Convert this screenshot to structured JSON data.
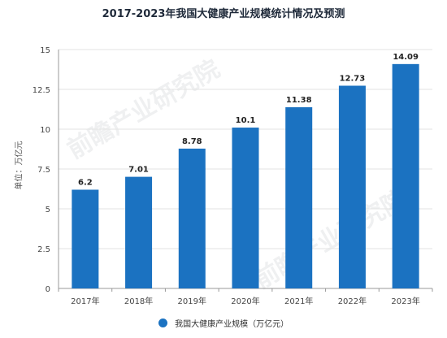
{
  "chart_data": {
    "type": "bar",
    "title": "2017-2023年我国大健康产业规模统计情况及预测",
    "ylabel": "单位：万亿元",
    "xlabel": "",
    "categories": [
      "2017年",
      "2018年",
      "2019年",
      "2020年",
      "2021年",
      "2022年",
      "2023年"
    ],
    "values": [
      6.2,
      7.01,
      8.78,
      10.1,
      11.38,
      12.73,
      14.09
    ],
    "value_labels": [
      "6.2",
      "7.01",
      "8.78",
      "10.1",
      "11.38",
      "12.73",
      "14.09"
    ],
    "series": [
      {
        "name": "我国大健康产业规模（万亿元）",
        "values": [
          6.2,
          7.01,
          8.78,
          10.1,
          11.38,
          12.73,
          14.09
        ]
      }
    ],
    "ylim": [
      0,
      15
    ],
    "yticks": [
      0,
      2.5,
      5,
      7.5,
      10,
      12.5,
      15
    ],
    "ytick_labels": [
      "0",
      "2.5",
      "5",
      "7.5",
      "10",
      "12.5",
      "15"
    ],
    "grid": true,
    "legend_position": "bottom-center",
    "bar_color": "#1b72c1",
    "grid_color": "#e3e3e3",
    "axis_color": "#999999"
  },
  "watermark": {
    "text": "前瞻产业研究院"
  }
}
